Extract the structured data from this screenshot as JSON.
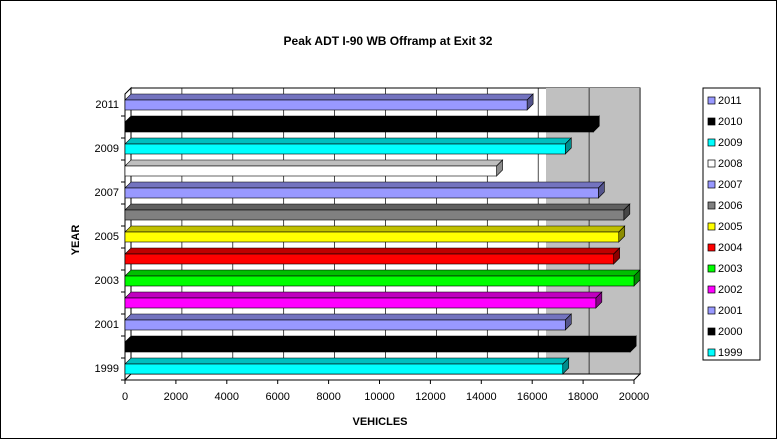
{
  "chart_data": {
    "type": "bar3d_horizontal",
    "title": "Peak ADT I-90 WB Offramp at Exit 32",
    "xlabel": "VEHICLES",
    "ylabel": "YEAR",
    "categories": [
      "1999",
      "2000",
      "2001",
      "2002",
      "2003",
      "2004",
      "2005",
      "2006",
      "2007",
      "2008",
      "2009",
      "2010",
      "2011"
    ],
    "values": [
      17200,
      19850,
      17300,
      18500,
      20000,
      19200,
      19400,
      19600,
      18600,
      14600,
      17300,
      18400,
      15800
    ],
    "colors": [
      "#00ffff",
      "#000000",
      "#9999ff",
      "#ff00ff",
      "#00ff00",
      "#ff0000",
      "#ffff00",
      "#808080",
      "#9999ff",
      "#ffffff",
      "#00ffff",
      "#000000",
      "#9999ff"
    ],
    "category_label_interval": 2,
    "xlim": [
      0,
      20000
    ],
    "xticks": [
      0,
      2000,
      4000,
      6000,
      8000,
      10000,
      12000,
      14000,
      16000,
      18000,
      20000
    ],
    "grid": true,
    "legend": "right"
  }
}
